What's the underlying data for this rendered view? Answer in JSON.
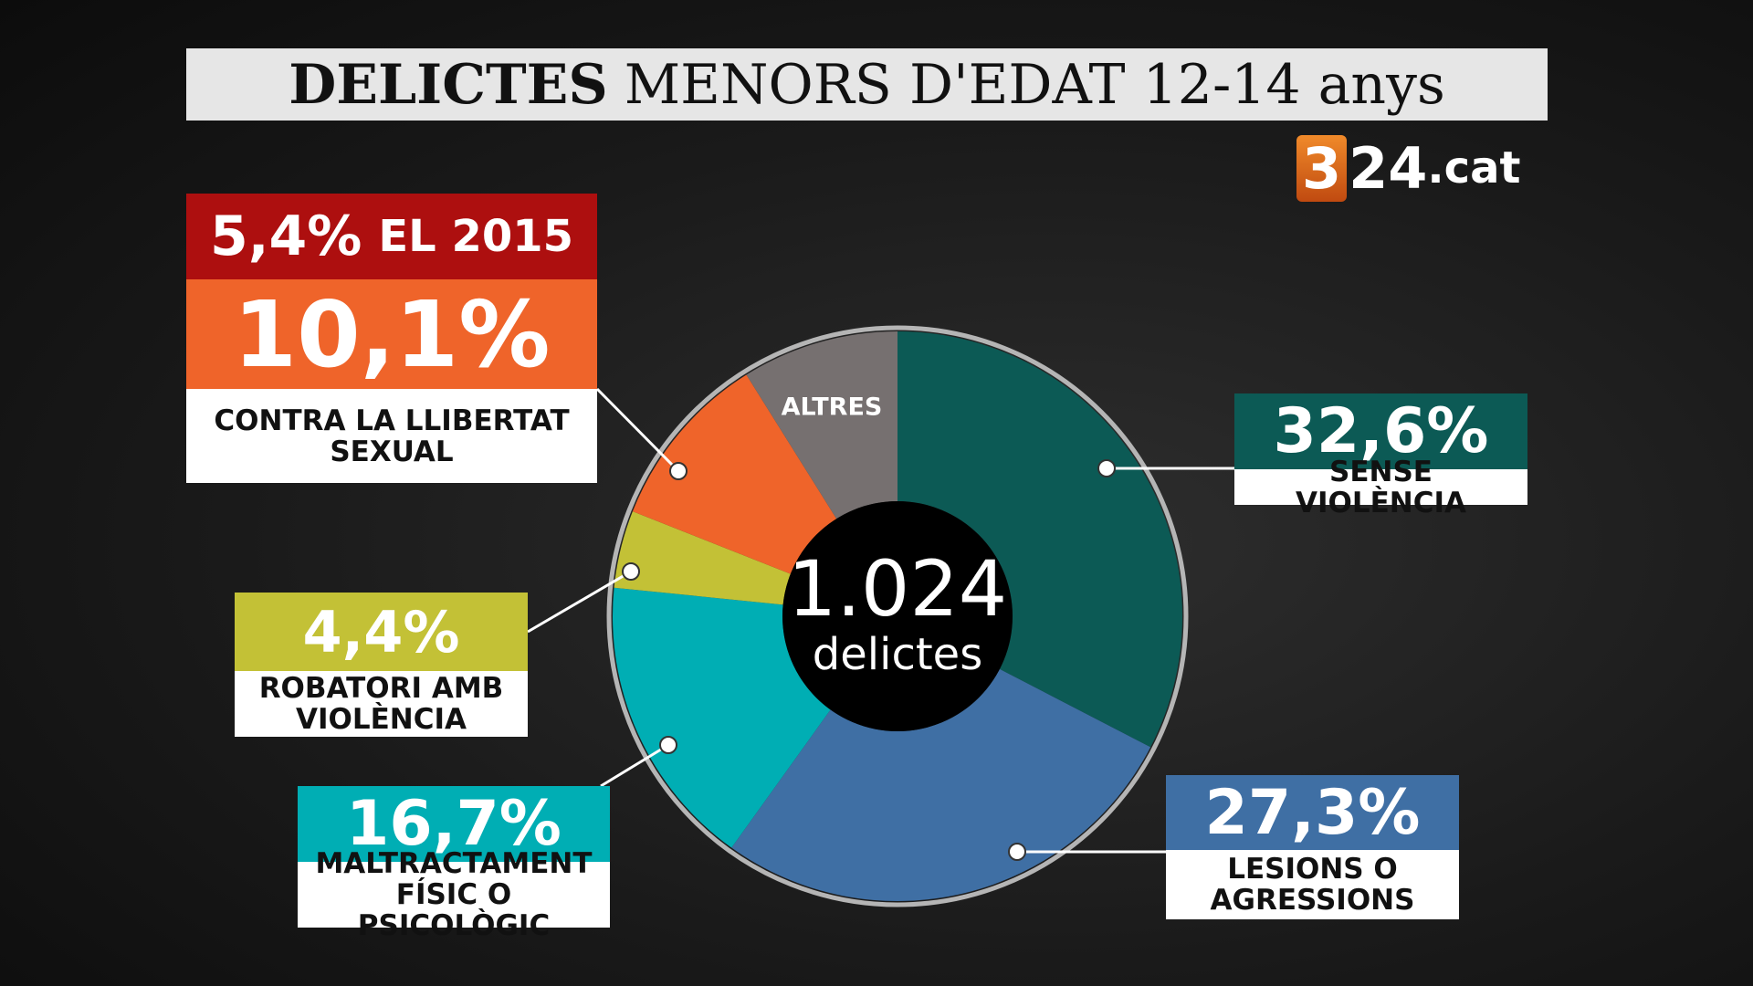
{
  "chart_data": {
    "type": "donut",
    "title_parts": [
      "DELICTES",
      "MENORS D'EDAT 12-14 anys"
    ],
    "logo": [
      "3",
      "24",
      ".cat"
    ],
    "categories": [
      "SENSE VIOLÈNCIA",
      "LESIONS O AGRESSIONS",
      "MALTRACTAMENT FÍSIC O PSICOLÒGIC",
      "ROBATORI AMB VIOLÈNCIA",
      "CONTRA LA LLIBERTAT SEXUAL",
      "ALTRES"
    ],
    "values": [
      32.6,
      27.3,
      16.7,
      4.4,
      10.1,
      8.9
    ],
    "value_labels": [
      "32,6%",
      "27,3%",
      "16,7%",
      "4,4%",
      "10,1%",
      null
    ],
    "colors": [
      "#0c5a55",
      "#3f6fa4",
      "#00aeb4",
      "#c3c136",
      "#ef642a",
      "#767070"
    ],
    "total": {
      "value": 1024,
      "label": "1.024"
    },
    "total_unit": "delictes",
    "annotation": {
      "value": 5.4,
      "label": "5,4%",
      "text": "EL 2015"
    }
  }
}
